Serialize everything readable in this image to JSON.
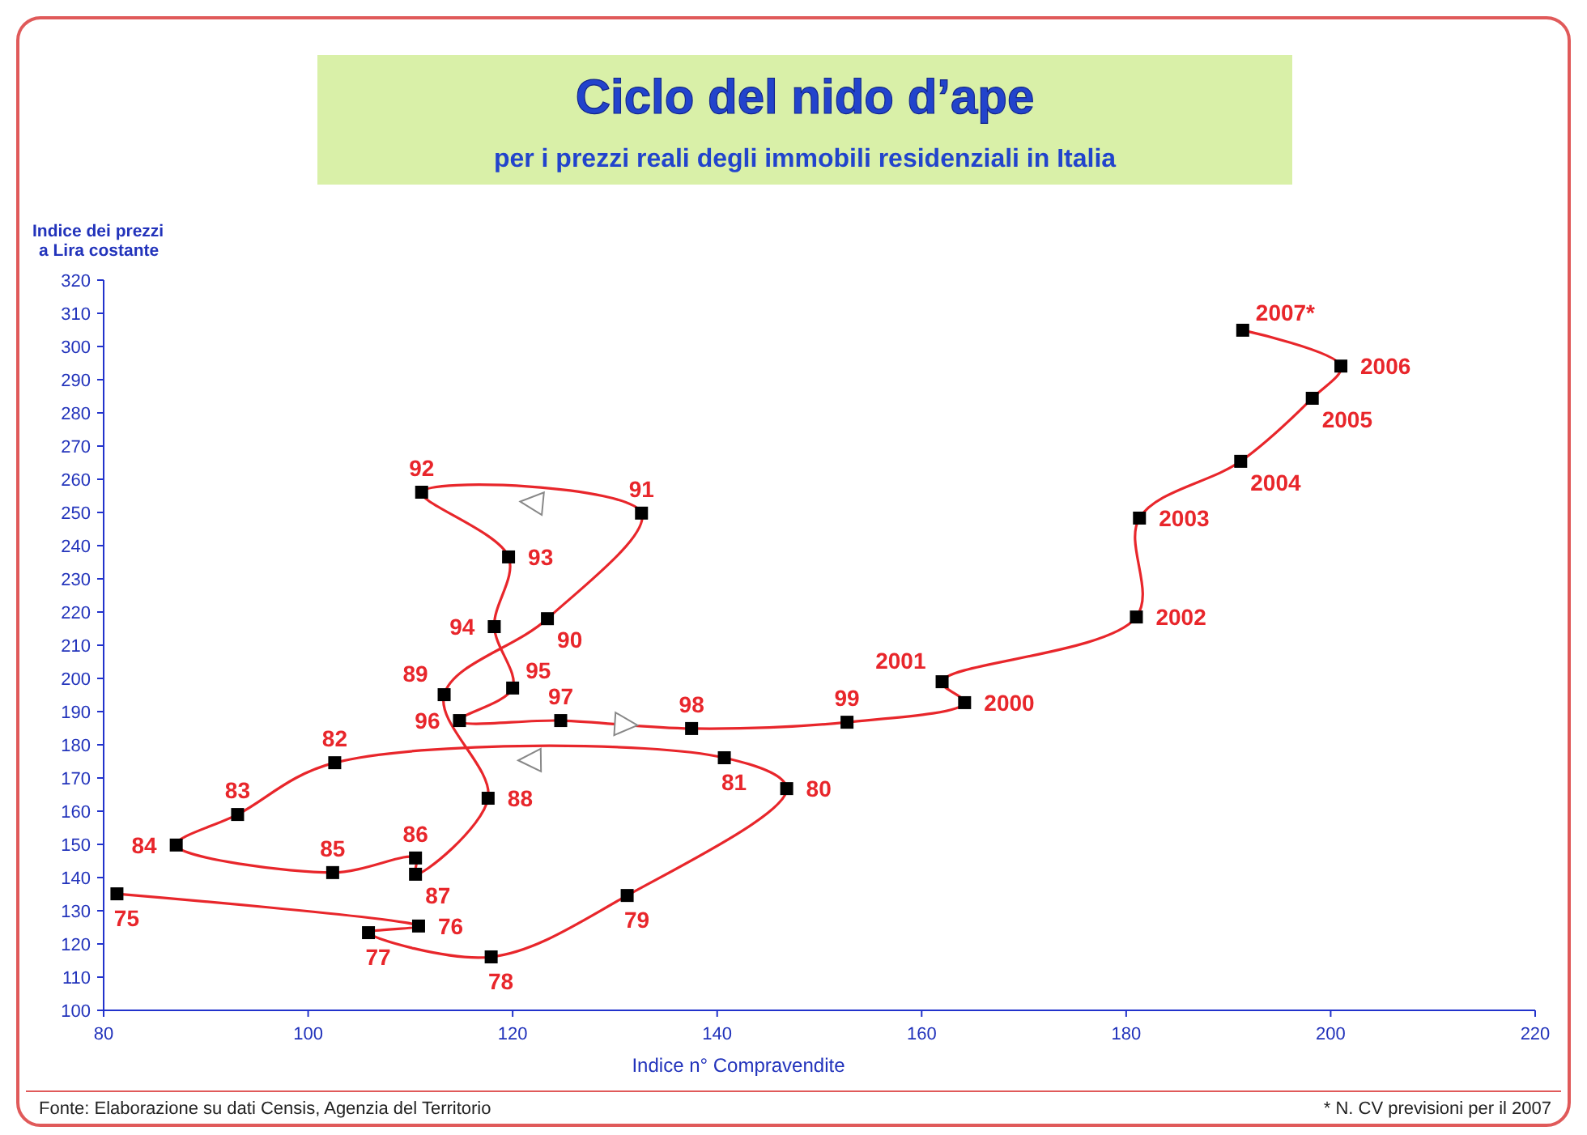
{
  "chart_data": {
    "type": "line",
    "title": "Ciclo del nido d’ape",
    "subtitle": "per i prezzi reali degli immobili residenziali in Italia",
    "xlabel": "Indice n° Compravendite",
    "ylabel": "Indice dei prezzi\na Lira costante",
    "x": [
      81.3,
      110.8,
      105.9,
      117.9,
      131.2,
      146.8,
      140.7,
      102.6,
      93.1,
      87.1,
      102.4,
      110.5,
      110.5,
      117.6,
      113.3,
      123.4,
      132.6,
      111.1,
      119.6,
      118.2,
      120,
      114.8,
      124.7,
      137.5,
      152.7,
      164.2,
      162,
      181,
      181.3,
      191.2,
      198.2,
      201,
      191.4
    ],
    "series": [
      {
        "color": "#e8262b",
        "values": [
          135.1,
          125.4,
          123.4,
          116.1,
          134.6,
          166.8,
          176.1,
          174.6,
          159,
          149.8,
          141.5,
          145.9,
          141,
          163.9,
          195.1,
          218,
          249.8,
          256.1,
          236.6,
          215.6,
          197.1,
          187.3,
          187.3,
          184.9,
          186.8,
          192.7,
          199,
          218.5,
          248.3,
          265.4,
          284.4,
          294.1,
          304.9
        ]
      }
    ],
    "marker": "square",
    "line_style": "solid",
    "grid": false,
    "xlim": [
      80,
      220
    ],
    "xticks": [
      80,
      100,
      120,
      140,
      160,
      180,
      200,
      220
    ],
    "ylim": [
      100,
      320
    ],
    "yticks": [
      100,
      110,
      120,
      130,
      140,
      150,
      160,
      170,
      180,
      190,
      200,
      210,
      220,
      230,
      240,
      250,
      260,
      270,
      280,
      290,
      300,
      310,
      320
    ],
    "annotations": [
      {
        "text": "75",
        "x": 81.3,
        "y": 135.1
      },
      {
        "text": "76",
        "x": 110.8,
        "y": 125.4
      },
      {
        "text": "77",
        "x": 105.9,
        "y": 123.4
      },
      {
        "text": "78",
        "x": 117.9,
        "y": 116.1
      },
      {
        "text": "79",
        "x": 131.2,
        "y": 134.6
      },
      {
        "text": "80",
        "x": 146.8,
        "y": 166.8
      },
      {
        "text": "81",
        "x": 140.7,
        "y": 176.1
      },
      {
        "text": "82",
        "x": 102.6,
        "y": 174.6
      },
      {
        "text": "83",
        "x": 93.1,
        "y": 159
      },
      {
        "text": "84",
        "x": 87.1,
        "y": 149.8
      },
      {
        "text": "85",
        "x": 102.4,
        "y": 141.5
      },
      {
        "text": "86",
        "x": 110.5,
        "y": 145.9
      },
      {
        "text": "87",
        "x": 110.5,
        "y": 141
      },
      {
        "text": "88",
        "x": 117.6,
        "y": 163.9
      },
      {
        "text": "89",
        "x": 113.3,
        "y": 195.1
      },
      {
        "text": "90",
        "x": 123.4,
        "y": 218
      },
      {
        "text": "91",
        "x": 132.6,
        "y": 249.8
      },
      {
        "text": "92",
        "x": 111.1,
        "y": 256.1
      },
      {
        "text": "93",
        "x": 119.6,
        "y": 236.6
      },
      {
        "text": "94",
        "x": 118.2,
        "y": 215.6
      },
      {
        "text": "95",
        "x": 120,
        "y": 197.1
      },
      {
        "text": "96",
        "x": 114.8,
        "y": 187.3
      },
      {
        "text": "97",
        "x": 124.7,
        "y": 187.3
      },
      {
        "text": "98",
        "x": 137.5,
        "y": 184.9
      },
      {
        "text": "99",
        "x": 152.7,
        "y": 186.8
      },
      {
        "text": "2000",
        "x": 164.2,
        "y": 192.7
      },
      {
        "text": "2001",
        "x": 162,
        "y": 199
      },
      {
        "text": "2002",
        "x": 181,
        "y": 218.5
      },
      {
        "text": "2003",
        "x": 181.3,
        "y": 248.3
      },
      {
        "text": "2004",
        "x": 191.2,
        "y": 265.4
      },
      {
        "text": "2005",
        "x": 198.2,
        "y": 284.4
      },
      {
        "text": "2006",
        "x": 201,
        "y": 294.1
      },
      {
        "text": "2007*",
        "x": 191.4,
        "y": 304.9
      },
      "Fonte: Elaborazione su dati Censis, Agenzia del Territorio",
      "* N. CV previsioni per il 2007"
    ]
  }
}
